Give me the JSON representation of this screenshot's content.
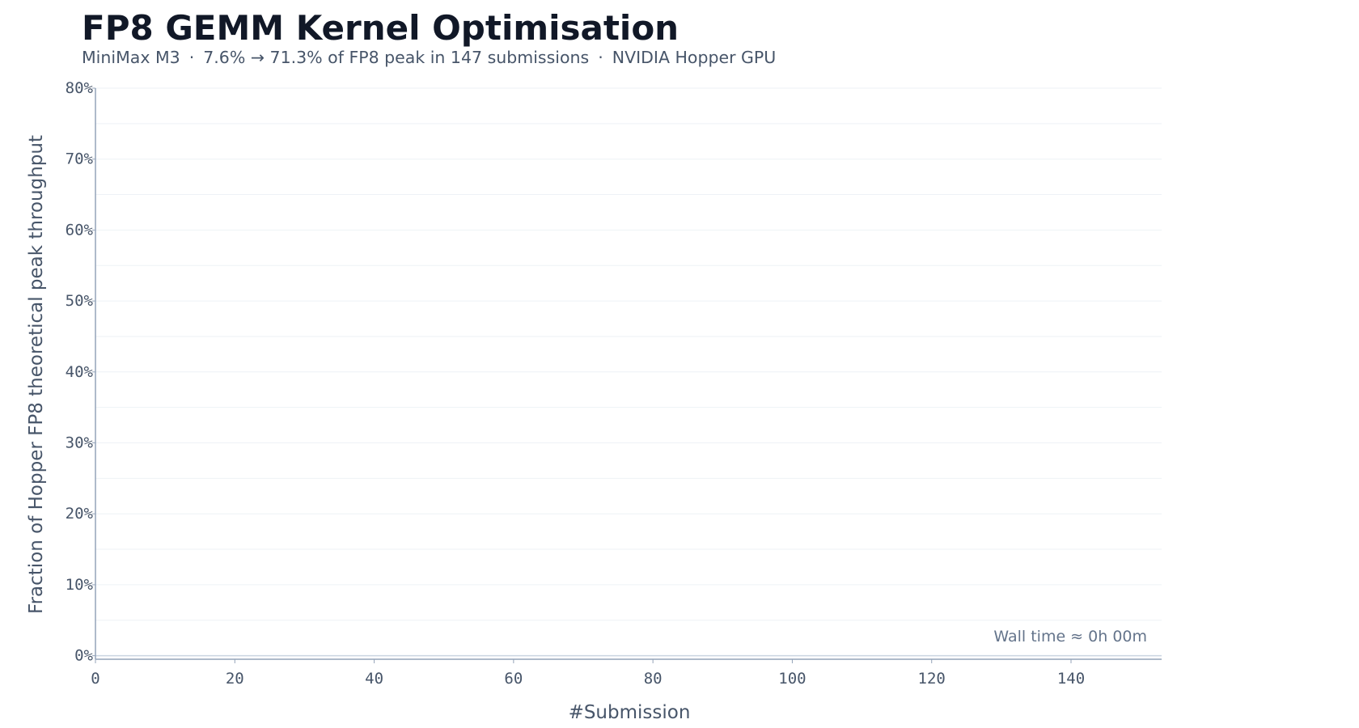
{
  "header": {
    "title": "FP8 GEMM Kernel Optimisation",
    "subtitle_parts": [
      "MiniMax M3",
      "7.6% → 71.3% of FP8 peak in 147 submissions",
      "NVIDIA Hopper GPU"
    ],
    "subtitle_separator": "·"
  },
  "chart_data": {
    "type": "line",
    "title": "FP8 GEMM Kernel Optimisation",
    "subtitle": "MiniMax M3  ·  7.6% → 71.3% of FP8 peak in 147 submissions  ·  NVIDIA Hopper GPU",
    "xlabel": "#Submission",
    "ylabel": "Fraction of Hopper FP8 theoretical peak throughput",
    "xlim": [
      0,
      153
    ],
    "ylim": [
      -0.5,
      80
    ],
    "x_ticks": [
      0,
      20,
      40,
      60,
      80,
      100,
      120,
      140
    ],
    "y_ticks": [
      0,
      10,
      20,
      30,
      40,
      50,
      60,
      70,
      80
    ],
    "y_tick_suffix": "%",
    "grid": true,
    "series": [],
    "annotation": "Wall time ≈ 0h 00m",
    "annotation_position": "bottom-right",
    "colors": {
      "axis": "#94a3b8",
      "grid": "#eef2f6",
      "text": "#475569"
    }
  }
}
